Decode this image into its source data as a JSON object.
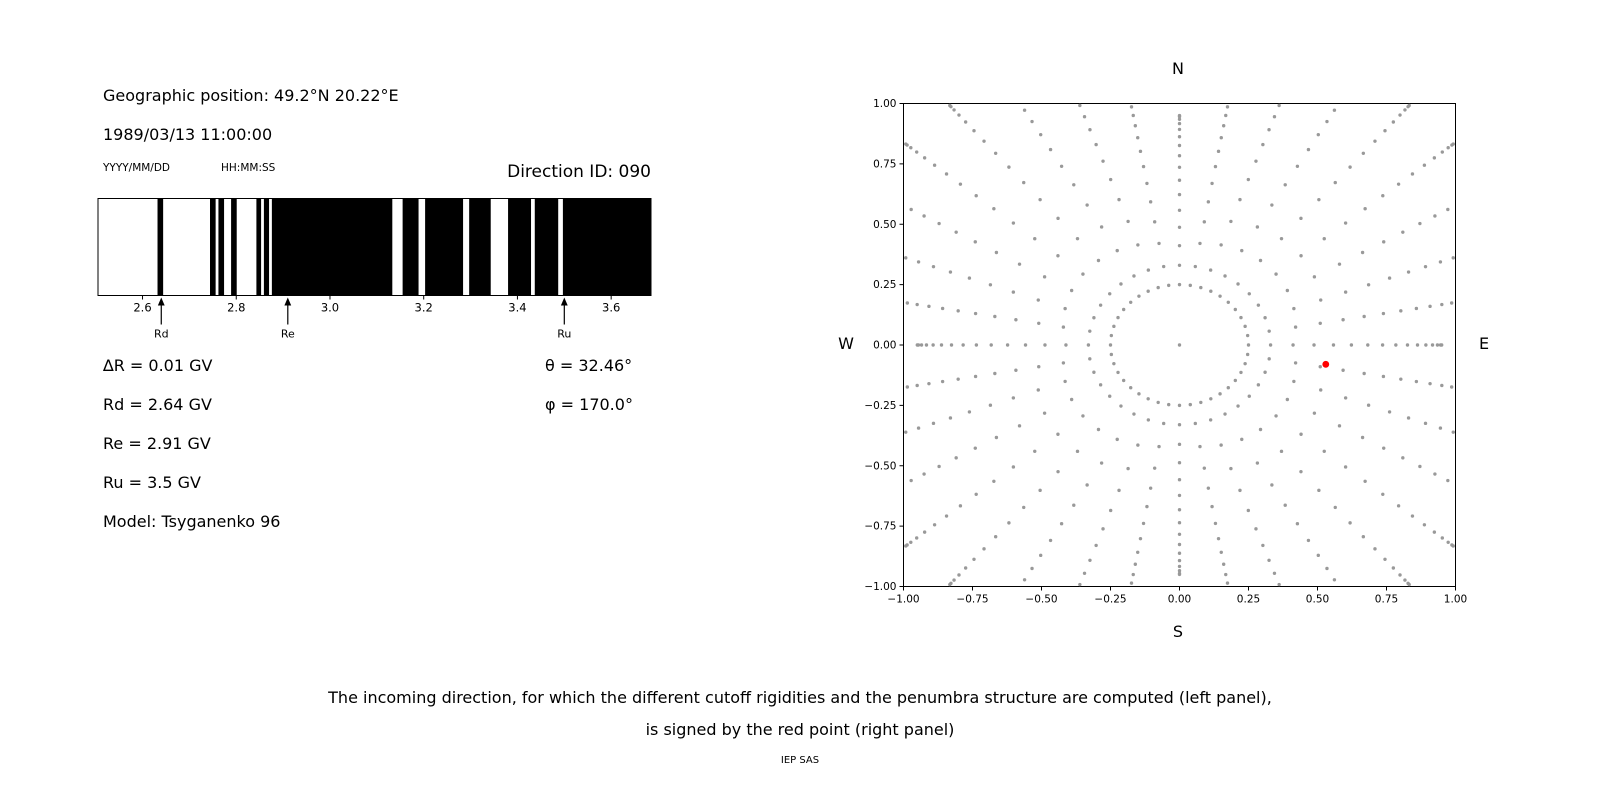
{
  "left_panel": {
    "geo_position": "Geographic position: 49.2°N 20.22°E",
    "datetime": "1989/03/13 11:00:00",
    "date_format": "YYYY/MM/DD",
    "time_format": "HH:MM:SS",
    "direction_id": "Direction ID: 090",
    "results": {
      "delta_r": "∆R = 0.01 GV",
      "rd": "Rd = 2.64 GV",
      "re": "Re = 2.91 GV",
      "ru": "Ru = 3.5 GV",
      "model": "Model: Tsyganenko 96",
      "theta": "θ = 32.46°",
      "phi": "φ = 170.0°"
    }
  },
  "caption": {
    "line1": "The incoming direction, for which the different cutoff rigidities and the penumbra structure are computed (left panel),",
    "line2": "is signed by the red point (right panel)",
    "credit": "IEP SAS"
  },
  "chart_data": [
    {
      "type": "bar",
      "name": "penumbra-barcode",
      "title": "",
      "xlabel": "",
      "ylabel": "",
      "xlim": [
        2.505,
        3.685
      ],
      "bar_color": "#000000",
      "background": "#ffffff",
      "x_ticks": [
        {
          "v": 2.6,
          "label": "2.6"
        },
        {
          "v": 2.8,
          "label": "2.8"
        },
        {
          "v": 3.0,
          "label": "3.0"
        },
        {
          "v": 3.2,
          "label": "3.2"
        },
        {
          "v": 3.4,
          "label": "3.4"
        },
        {
          "v": 3.6,
          "label": "3.6"
        }
      ],
      "forbidden_bands": [
        [
          2.632,
          2.644
        ],
        [
          2.744,
          2.756
        ],
        [
          2.762,
          2.774
        ],
        [
          2.789,
          2.801
        ],
        [
          2.843,
          2.853
        ],
        [
          2.859,
          2.87
        ],
        [
          2.876,
          3.133
        ],
        [
          3.155,
          3.189
        ],
        [
          3.203,
          3.284
        ],
        [
          3.297,
          3.343
        ],
        [
          3.38,
          3.429
        ],
        [
          3.437,
          3.487
        ],
        [
          3.497,
          3.685
        ]
      ],
      "markers": [
        {
          "label": "Rd",
          "x": 2.64
        },
        {
          "label": "Re",
          "x": 2.91
        },
        {
          "label": "Ru",
          "x": 3.5
        }
      ]
    },
    {
      "type": "scatter",
      "name": "incoming-direction-map",
      "title": "",
      "xlim": [
        -1,
        1
      ],
      "ylim": [
        -1,
        1
      ],
      "grid": false,
      "compass": {
        "top": "N",
        "bottom": "S",
        "left": "W",
        "right": "E"
      },
      "dot_color": "#999999",
      "x_ticks": [
        {
          "v": -1.0,
          "label": "−1.00"
        },
        {
          "v": -0.75,
          "label": "−0.75"
        },
        {
          "v": -0.5,
          "label": "−0.50"
        },
        {
          "v": -0.25,
          "label": "−0.25"
        },
        {
          "v": 0.0,
          "label": "0.00"
        },
        {
          "v": 0.25,
          "label": "0.25"
        },
        {
          "v": 0.5,
          "label": "0.50"
        },
        {
          "v": 0.75,
          "label": "0.75"
        },
        {
          "v": 1.0,
          "label": "1.00"
        }
      ],
      "y_ticks": [
        {
          "v": 1.0,
          "label": "1.00"
        },
        {
          "v": 0.75,
          "label": "0.75"
        },
        {
          "v": 0.5,
          "label": "0.50"
        },
        {
          "v": 0.25,
          "label": "0.25"
        },
        {
          "v": 0.0,
          "label": "0.00"
        },
        {
          "v": -0.25,
          "label": "−0.25"
        },
        {
          "v": -0.5,
          "label": "−0.50"
        },
        {
          "v": -0.75,
          "label": "−0.75"
        },
        {
          "v": -1.0,
          "label": "−1.00"
        }
      ],
      "center_dot": {
        "x": 0,
        "y": 0
      },
      "inner_ring": {
        "radius": 0.25,
        "count": 40
      },
      "spokes": {
        "azimuth_step_deg": 10,
        "start_radius": 0.33,
        "dots_per_spoke": 15,
        "tip_base": 0.95,
        "tip_diag_boost": 0.35,
        "accumulation_exponent": 1.9
      },
      "red_point": {
        "x": 0.53,
        "y": -0.08,
        "color": "#ff0000"
      }
    }
  ]
}
